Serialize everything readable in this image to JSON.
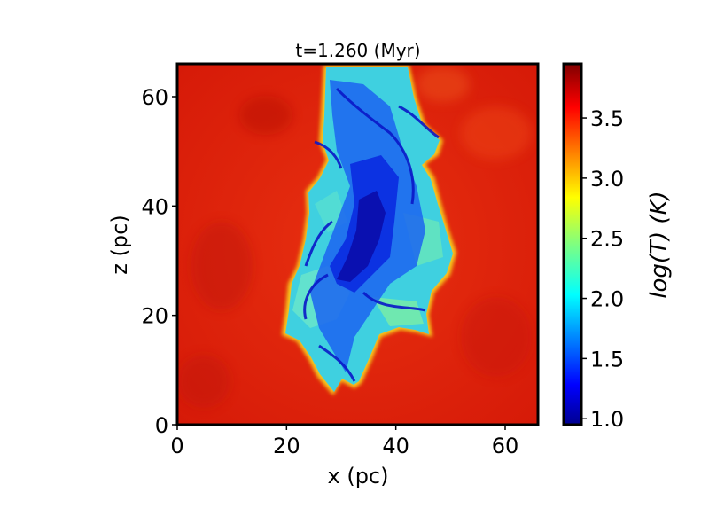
{
  "chart_data": {
    "type": "heatmap",
    "title": "t=1.260 (Myr)",
    "xlabel": "x (pc)",
    "ylabel": "z (pc)",
    "xlim": [
      0,
      66
    ],
    "ylim": [
      0,
      66
    ],
    "xticks": [
      0,
      20,
      40,
      60
    ],
    "yticks": [
      0,
      20,
      40,
      60
    ],
    "colorbar": {
      "label": "log(T) (K)",
      "range": [
        0.95,
        3.95
      ],
      "ticks": [
        1.0,
        1.5,
        2.0,
        2.5,
        3.0,
        3.5
      ],
      "colormap": "jet"
    },
    "cloud_region": {
      "hot_background_log_T": 3.8,
      "cloud_log_T_range": [
        1.0,
        2.3
      ],
      "x_extent": [
        19,
        51
      ],
      "z_extent": [
        5,
        66
      ]
    }
  },
  "colors": {
    "hot_region": "#e8200a",
    "cold_core": "#0a1ee0",
    "cloud_body": "#3fd0e0"
  }
}
